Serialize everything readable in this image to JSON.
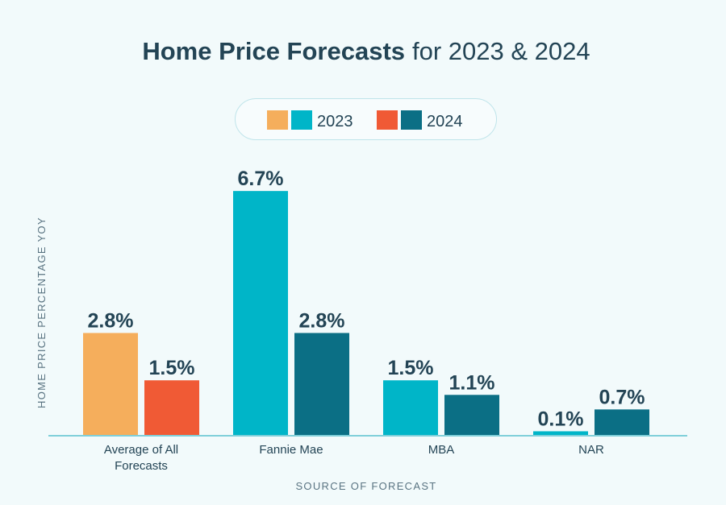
{
  "chart_data": {
    "type": "bar",
    "title": "Home Price Forecasts",
    "title_suffix": "for 2023 & 2024",
    "xlabel": "SOURCE OF FORECAST",
    "ylabel": "HOME PRICE PERCENTAGE YOY",
    "ylim": [
      0,
      7.5
    ],
    "grid": false,
    "legend_position": "top-center",
    "categories": [
      "Average of All Forecasts",
      "Fannie Mae",
      "MBA",
      "NAR"
    ],
    "category_label_lines": [
      [
        "Average of All",
        "Forecasts"
      ],
      [
        "Fannie Mae"
      ],
      [
        "MBA"
      ],
      [
        "NAR"
      ]
    ],
    "series": [
      {
        "name": "2023",
        "values": [
          2.8,
          6.7,
          1.5,
          0.1
        ],
        "labels": [
          "2.8%",
          "6.7%",
          "1.5%",
          "0.1%"
        ]
      },
      {
        "name": "2024",
        "values": [
          1.5,
          2.8,
          1.1,
          0.7
        ],
        "labels": [
          "1.5%",
          "2.8%",
          "1.1%",
          "0.7%"
        ]
      }
    ],
    "colors": {
      "2023": [
        "#f5ae5c",
        "#00b5c8",
        "#00b5c8",
        "#00b5c8"
      ],
      "2024": [
        "#f05a35",
        "#0b6f85",
        "#0b6f85",
        "#0b6f85"
      ],
      "legend_2023": [
        "#f5ae5c",
        "#00b5c8"
      ],
      "legend_2024": [
        "#f05a35",
        "#0b6f85"
      ],
      "text": "#234455",
      "axis_label": "#5a7482",
      "baseline": "#7fcfd9"
    }
  }
}
